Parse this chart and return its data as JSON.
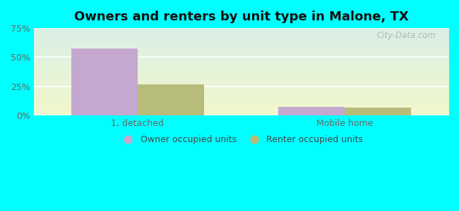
{
  "title": "Owners and renters by unit type in Malone, TX",
  "categories": [
    "1, detached",
    "Mobile home"
  ],
  "owner_values": [
    57.5,
    7.5
  ],
  "renter_values": [
    26.5,
    6.5
  ],
  "owner_color": "#c4a8d0",
  "renter_color": "#b8bc7a",
  "ylim": [
    0,
    75
  ],
  "yticks": [
    0,
    25,
    50,
    75
  ],
  "yticklabels": [
    "0%",
    "25%",
    "50%",
    "75%"
  ],
  "bar_width": 0.32,
  "outer_bg": "#00ffff",
  "watermark": "City-Data.com",
  "legend_owner": "Owner occupied units",
  "legend_renter": "Renter occupied units",
  "title_fontsize": 13,
  "tick_fontsize": 9,
  "legend_fontsize": 9,
  "bg_color_top_left": "#d8ece0",
  "bg_color_top_right": "#d8eef0",
  "bg_color_bottom": "#e8f5e4"
}
